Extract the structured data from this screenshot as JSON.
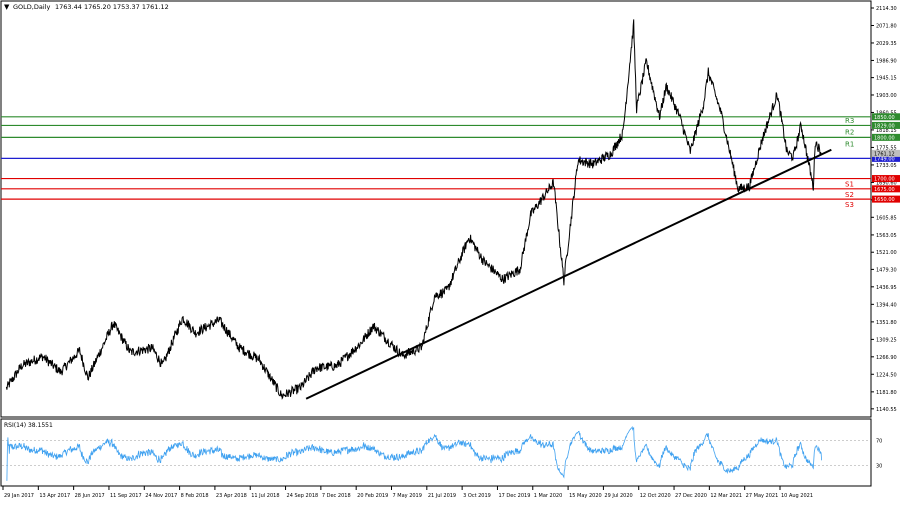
{
  "header": {
    "symbol_text": "GOLD,Daily",
    "ohlc_text": "1763.44 1765.20 1753.37 1761.12"
  },
  "rsi_panel": {
    "label": "RSI(14) 38.1551"
  },
  "colors": {
    "price_line": "#000000",
    "resistance": "#2e8b2e",
    "support": "#e00000",
    "pivot": "#1f1fd0",
    "current_price": "#bfbfbf",
    "rsi_line": "#3fa1f0",
    "trendline": "#000000"
  },
  "chart_data": {
    "type": "line",
    "symbol": "GOLD",
    "timeframe": "Daily",
    "ohlc_last": {
      "open": 1763.44,
      "high": 1765.2,
      "low": 1753.37,
      "close": 1761.12
    },
    "y_ticks": [
      2114.3,
      2071.8,
      2029.35,
      1986.9,
      1945.15,
      1903.0,
      1860.55,
      1818.15,
      1775.55,
      1733.05,
      1690.6,
      1648.25,
      1605.85,
      1563.05,
      1521.0,
      1479.3,
      1436.95,
      1394.4,
      1351.8,
      1309.25,
      1266.9,
      1224.5,
      1181.8,
      1140.55
    ],
    "ylim": [
      1128,
      2124
    ],
    "x_tick_labels": [
      "29 Jan 2017",
      "13 Apr 2017",
      "28 Jun 2017",
      "11 Sep 2017",
      "24 Nov 2017",
      "8 Feb 2018",
      "23 Apr 2018",
      "11 Jul 2018",
      "24 Sep 2018",
      "7 Dec 2018",
      "20 Feb 2019",
      "7 May 2019",
      "21 Jul 2019",
      "3 Oct 2019",
      "17 Dec 2019",
      "1 Mar 2020",
      "15 May 2020",
      "29 Jul 2020",
      "12 Oct 2020",
      "27 Dec 2020",
      "12 Mar 2021",
      "27 May 2021",
      "10 Aug 2021"
    ],
    "price_path": [
      [
        "2017-01-29",
        1190
      ],
      [
        "2017-03-01",
        1245
      ],
      [
        "2017-04-13",
        1268
      ],
      [
        "2017-05-20",
        1230
      ],
      [
        "2017-06-28",
        1282
      ],
      [
        "2017-07-15",
        1215
      ],
      [
        "2017-09-05",
        1348
      ],
      [
        "2017-10-10",
        1278
      ],
      [
        "2017-11-24",
        1288
      ],
      [
        "2017-12-15",
        1245
      ],
      [
        "2018-01-25",
        1362
      ],
      [
        "2018-02-20",
        1325
      ],
      [
        "2018-04-10",
        1356
      ],
      [
        "2018-05-20",
        1290
      ],
      [
        "2018-07-01",
        1260
      ],
      [
        "2018-08-16",
        1172
      ],
      [
        "2018-09-24",
        1192
      ],
      [
        "2018-10-25",
        1240
      ],
      [
        "2018-12-07",
        1245
      ],
      [
        "2019-01-25",
        1300
      ],
      [
        "2019-02-20",
        1342
      ],
      [
        "2019-04-20",
        1270
      ],
      [
        "2019-05-30",
        1290
      ],
      [
        "2019-06-25",
        1415
      ],
      [
        "2019-07-21",
        1428
      ],
      [
        "2019-09-04",
        1558
      ],
      [
        "2019-10-03",
        1500
      ],
      [
        "2019-11-12",
        1455
      ],
      [
        "2019-12-17",
        1480
      ],
      [
        "2020-01-08",
        1612
      ],
      [
        "2020-02-24",
        1690
      ],
      [
        "2020-03-16",
        1452
      ],
      [
        "2020-04-14",
        1745
      ],
      [
        "2020-05-15",
        1735
      ],
      [
        "2020-06-20",
        1760
      ],
      [
        "2020-07-15",
        1810
      ],
      [
        "2020-08-06",
        2075
      ],
      [
        "2020-08-12",
        1870
      ],
      [
        "2020-09-01",
        1985
      ],
      [
        "2020-09-28",
        1850
      ],
      [
        "2020-10-12",
        1925
      ],
      [
        "2020-11-09",
        1848
      ],
      [
        "2020-11-30",
        1765
      ],
      [
        "2020-12-27",
        1880
      ],
      [
        "2021-01-06",
        1958
      ],
      [
        "2021-02-01",
        1860
      ],
      [
        "2021-03-08",
        1675
      ],
      [
        "2021-03-31",
        1680
      ],
      [
        "2021-04-25",
        1790
      ],
      [
        "2021-05-27",
        1905
      ],
      [
        "2021-06-16",
        1765
      ],
      [
        "2021-06-29",
        1752
      ],
      [
        "2021-07-15",
        1830
      ],
      [
        "2021-08-09",
        1680
      ],
      [
        "2021-08-13",
        1790
      ],
      [
        "2021-08-26",
        1761.12
      ]
    ],
    "levels": [
      {
        "label": "R3",
        "value": 1850.0
      },
      {
        "label": "R2",
        "value": 1829.0
      },
      {
        "label": "R1",
        "value": 1800.0
      },
      {
        "label": "",
        "value": 1749.0
      },
      {
        "label": "S1",
        "value": 1700.0
      },
      {
        "label": "S2",
        "value": 1675.0
      },
      {
        "label": "S3",
        "value": 1650.0
      }
    ],
    "current_price": 1761.12,
    "trendline": {
      "start": [
        "2018-10-05",
        1165
      ],
      "end": [
        "2021-09-15",
        1770
      ]
    },
    "rsi": {
      "period": 14,
      "last": 38.1551,
      "levels": [
        30,
        70
      ],
      "ticks": [
        30,
        70
      ],
      "range": [
        0,
        100
      ]
    }
  }
}
